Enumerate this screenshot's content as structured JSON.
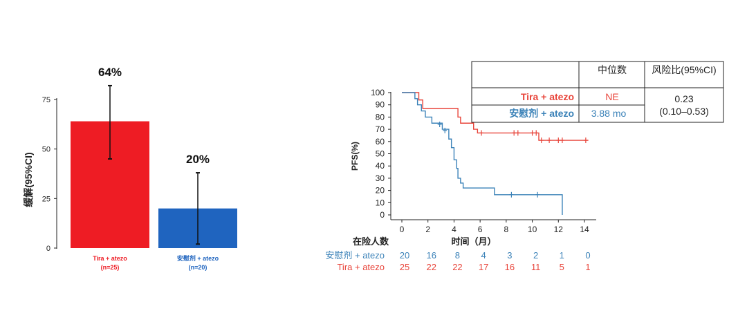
{
  "colors": {
    "red": "#ee1c24",
    "blue": "#1f64bf",
    "km_red": "#e8443a",
    "km_blue": "#3b82b8",
    "axis": "#222222"
  },
  "chart_data": [
    {
      "type": "bar",
      "ylabel": "缓解(95%CI)",
      "ylim": [
        0,
        75
      ],
      "yticks": [
        0,
        25,
        50,
        75
      ],
      "categories": [
        "Tira + atezo",
        "安慰剂 + atezo"
      ],
      "category_sub": [
        "(n=25)",
        "(n=20)"
      ],
      "values": [
        64,
        20
      ],
      "value_labels": [
        "64%",
        "20%"
      ],
      "ci_low": [
        45,
        2
      ],
      "ci_high": [
        82,
        38
      ]
    },
    {
      "type": "line",
      "subtype": "kaplan-meier",
      "ylabel": "PFS(%)",
      "xlabel": "时间（月）",
      "xlim": [
        0,
        14
      ],
      "ylim": [
        0,
        100
      ],
      "xticks": [
        0,
        2,
        4,
        6,
        8,
        10,
        12,
        14
      ],
      "yticks": [
        0,
        10,
        20,
        30,
        40,
        50,
        60,
        70,
        80,
        90,
        100
      ],
      "series": [
        {
          "name": "Tira + atezo",
          "color": "#e8443a",
          "steps": [
            [
              0,
              100
            ],
            [
              1.2,
              100
            ],
            [
              1.3,
              94
            ],
            [
              1.6,
              87
            ],
            [
              4.2,
              87
            ],
            [
              4.3,
              80
            ],
            [
              4.5,
              75
            ],
            [
              5.2,
              75
            ],
            [
              5.5,
              70
            ],
            [
              5.8,
              67
            ],
            [
              10.2,
              67
            ],
            [
              10.5,
              61
            ],
            [
              14.3,
              61
            ]
          ],
          "censors": [
            [
              6.1,
              67
            ],
            [
              8.6,
              67
            ],
            [
              8.9,
              67
            ],
            [
              10.0,
              67
            ],
            [
              10.3,
              67
            ],
            [
              10.7,
              61
            ],
            [
              11.3,
              61
            ],
            [
              12.0,
              61
            ],
            [
              12.3,
              61
            ],
            [
              14.1,
              61
            ]
          ]
        },
        {
          "name": "安慰剂 + atezo",
          "color": "#3b82b8",
          "steps": [
            [
              0,
              100
            ],
            [
              0.9,
              100
            ],
            [
              1.0,
              95
            ],
            [
              1.2,
              90
            ],
            [
              1.5,
              85
            ],
            [
              1.8,
              80
            ],
            [
              2.3,
              75
            ],
            [
              3.1,
              70
            ],
            [
              3.6,
              62
            ],
            [
              3.8,
              55
            ],
            [
              4.0,
              45
            ],
            [
              4.2,
              38
            ],
            [
              4.3,
              30
            ],
            [
              4.5,
              26
            ],
            [
              4.7,
              22
            ],
            [
              7.0,
              22
            ],
            [
              7.1,
              16.5
            ],
            [
              12.3,
              16.5
            ],
            [
              12.3,
              0
            ]
          ],
          "censors": [
            [
              2.9,
              74
            ],
            [
              3.3,
              69
            ],
            [
              8.4,
              16.5
            ],
            [
              10.4,
              16.5
            ]
          ]
        }
      ],
      "at_risk": {
        "title": "在险人数",
        "rows": [
          {
            "label": "安慰剂 + atezo",
            "color": "#3b82b8",
            "values": [
              20,
              16,
              8,
              4,
              3,
              2,
              1,
              0
            ]
          },
          {
            "label": "Tira + atezo",
            "color": "#e8443a",
            "values": [
              25,
              22,
              22,
              17,
              16,
              11,
              5,
              1
            ]
          }
        ]
      },
      "table": {
        "header": [
          "",
          "中位数",
          "风险比(95%CI)"
        ],
        "rows": [
          {
            "label": "Tira + atezo",
            "color": "#e8443a",
            "median": "NE"
          },
          {
            "label": "安慰剂 + atezo",
            "color": "#3b82b8",
            "median": "3.88 mo"
          }
        ],
        "hr": "0.23",
        "ci": "(0.10–0.53)"
      }
    }
  ]
}
